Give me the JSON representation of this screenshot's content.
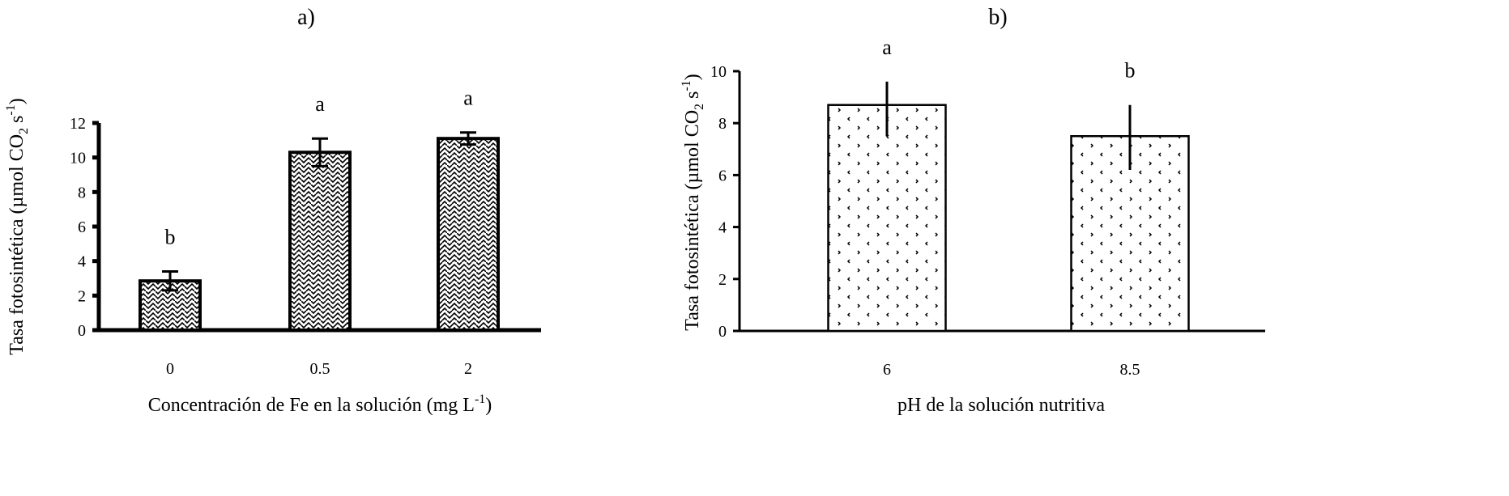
{
  "chart_data": [
    {
      "type": "bar",
      "title": "a)",
      "xlabel": "Concentración de Fe en la solución (mg L",
      "xlabel_sup": "-1",
      "xlabel_end": ")",
      "ylabel": "Tasa fotosintética (µmol CO",
      "ylabel_sub": "2",
      "ylabel_mid": " s",
      "ylabel_sup": "-1",
      "ylabel_end": ")",
      "categories": [
        "0",
        "0.5",
        "2"
      ],
      "values": [
        2.85,
        10.3,
        11.1
      ],
      "error_upper": [
        3.4,
        11.1,
        11.45
      ],
      "error_lower": [
        2.3,
        9.5,
        10.75
      ],
      "letters": [
        "b",
        "a",
        "a"
      ],
      "ylim": [
        0,
        12
      ],
      "yticks": [
        "0",
        "2",
        "4",
        "6",
        "8",
        "10",
        "12"
      ],
      "pattern": "zigzag-weave",
      "grid": false
    },
    {
      "type": "bar",
      "title": "b)",
      "xlabel": "pH de la solución nutritiva",
      "ylabel": "Tasa fotosintética (µmol CO",
      "ylabel_sub": "2",
      "ylabel_mid": " s",
      "ylabel_sup": "-1",
      "ylabel_end": ")",
      "categories": [
        "6",
        "8.5"
      ],
      "values": [
        8.7,
        7.5
      ],
      "error_upper": [
        9.6,
        8.7
      ],
      "error_lower": [
        7.5,
        6.2
      ],
      "letters": [
        "a",
        "b"
      ],
      "ylim": [
        0,
        10
      ],
      "yticks": [
        "0",
        "2",
        "4",
        "6",
        "8",
        "10"
      ],
      "pattern": "sparse-dots",
      "grid": false
    }
  ]
}
